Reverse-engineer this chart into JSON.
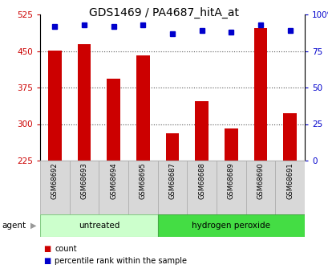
{
  "title": "GDS1469 / PA4687_hitA_at",
  "categories": [
    "GSM68692",
    "GSM68693",
    "GSM68694",
    "GSM68695",
    "GSM68687",
    "GSM68688",
    "GSM68689",
    "GSM68690",
    "GSM68691"
  ],
  "counts": [
    451,
    464,
    393,
    441,
    281,
    347,
    291,
    497,
    323
  ],
  "percentiles": [
    92,
    93,
    92,
    93,
    87,
    89,
    88,
    93,
    89
  ],
  "ymin": 225,
  "ymax": 525,
  "yticks": [
    225,
    300,
    375,
    450,
    525
  ],
  "ytick_labels": [
    "225",
    "300",
    "375",
    "450",
    "525"
  ],
  "y2min": 0,
  "y2max": 100,
  "y2ticks": [
    0,
    25,
    50,
    75,
    100
  ],
  "y2tick_labels": [
    "0",
    "25",
    "50",
    "75",
    "100%"
  ],
  "bar_color": "#cc0000",
  "dot_color": "#0000cc",
  "untreated_color_light": "#ccffcc",
  "untreated_color_dark": "#44dd44",
  "grid_linestyle": ":",
  "grid_color": "#555555",
  "tick_color_left": "#cc0000",
  "tick_color_right": "#0000cc",
  "bar_bottom": 225,
  "legend_count_label": "count",
  "legend_pct_label": "percentile rank within the sample",
  "agent_label": "agent",
  "group1_label": "untreated",
  "group2_label": "hydrogen peroxide",
  "xlabel_box_color": "#d8d8d8",
  "xlabel_box_edge": "#aaaaaa"
}
